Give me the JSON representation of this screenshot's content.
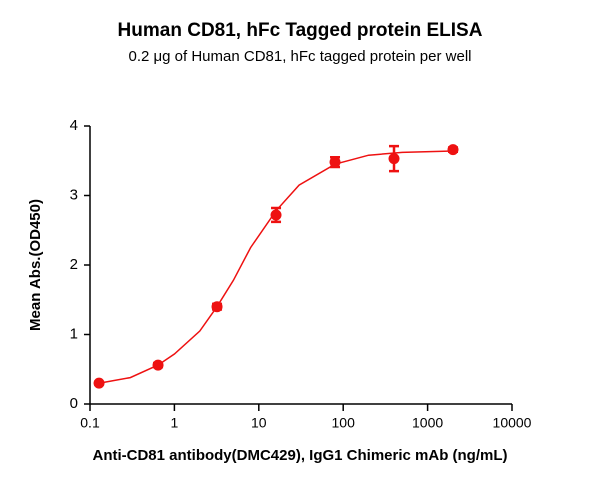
{
  "chart_data": {
    "type": "scatter",
    "title": "Human CD81, hFc Tagged protein ELISA",
    "subtitle": "0.2 μg of Human CD81, hFc tagged protein per well",
    "x_label": "Anti-CD81 antibody(DMC429), IgG1 Chimeric mAb (ng/mL)",
    "y_label": "Mean Abs.(OD450)",
    "x_scale": "log",
    "x": [
      0.128,
      0.64,
      3.2,
      16,
      80,
      400,
      2000
    ],
    "values": [
      0.3,
      0.56,
      1.4,
      2.72,
      3.48,
      3.53,
      3.66
    ],
    "errors": [
      0.02,
      0.03,
      0.04,
      0.1,
      0.07,
      0.18,
      0.03
    ],
    "color": "#ee1111",
    "fit": {
      "x": [
        0.13,
        0.3,
        0.64,
        1,
        2,
        3.2,
        5,
        8,
        16,
        30,
        80,
        200,
        500,
        2000
      ],
      "values": [
        0.3,
        0.38,
        0.56,
        0.72,
        1.05,
        1.4,
        1.78,
        2.25,
        2.78,
        3.15,
        3.45,
        3.58,
        3.62,
        3.64
      ]
    },
    "xlim": [
      0.1,
      10000
    ],
    "xticks": [
      0.1,
      1,
      10,
      100,
      1000,
      10000
    ],
    "ylim": [
      0,
      4
    ],
    "yticks": [
      0,
      1,
      2,
      3,
      4
    ]
  }
}
